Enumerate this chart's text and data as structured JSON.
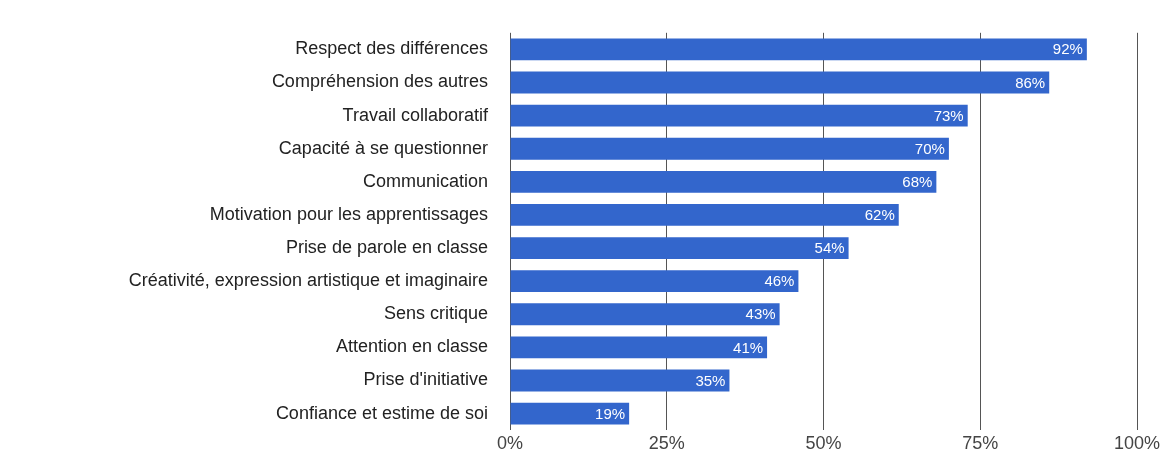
{
  "chart_data": {
    "type": "bar",
    "orientation": "horizontal",
    "categories": [
      "Respect des différences",
      "Compréhension des autres",
      "Travail collaboratif",
      "Capacité à se questionner",
      "Communication",
      "Motivation pour les apprentissages",
      "Prise de parole en classe",
      "Créativité, expression artistique et imaginaire",
      "Sens critique",
      "Attention en classe",
      "Prise d'initiative",
      "Confiance et estime de soi"
    ],
    "values": [
      92,
      86,
      73,
      70,
      68,
      62,
      54,
      46,
      43,
      41,
      35,
      19
    ],
    "value_labels": [
      "92%",
      "86%",
      "73%",
      "70%",
      "68%",
      "62%",
      "54%",
      "46%",
      "43%",
      "41%",
      "35%",
      "19%"
    ],
    "color": "#3366cc",
    "xlim": [
      0,
      100
    ],
    "xticks": [
      {
        "value": 0,
        "label": "0%"
      },
      {
        "value": 25,
        "label": "25%"
      },
      {
        "value": 50,
        "label": "50%"
      },
      {
        "value": 75,
        "label": "75%"
      },
      {
        "value": 100,
        "label": "100%"
      }
    ],
    "grid": "x",
    "legend": false
  }
}
